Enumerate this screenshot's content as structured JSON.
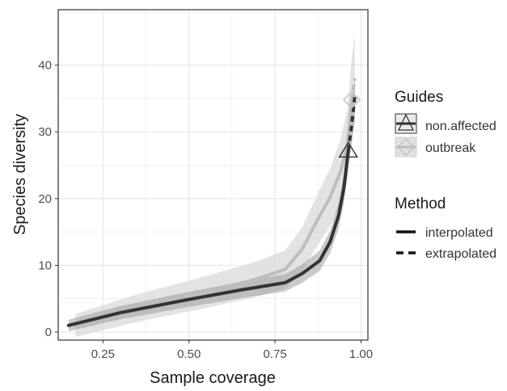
{
  "colors": {
    "non_affected": "#333333",
    "outbreak": "#bdbdbd",
    "ribbon_non_affected": "#9e9e9e",
    "ribbon_outbreak": "#d9d9d9",
    "grid": "#ebebeb",
    "panel_border": "#333333",
    "text": "#1a1a1a",
    "tick_text": "#4d4d4d"
  },
  "chart_data": {
    "type": "line",
    "xlabel": "Sample coverage",
    "ylabel": "Species diversity",
    "xlim": [
      0.12,
      1.02
    ],
    "ylim": [
      -1.2,
      48.3
    ],
    "x_ticks": [
      0.25,
      0.5,
      0.75,
      1.0
    ],
    "x_tick_labels": [
      "0.25",
      "0.50",
      "0.75",
      "1.00"
    ],
    "y_ticks": [
      0,
      10,
      20,
      30,
      40
    ],
    "y_tick_labels": [
      "0",
      "10",
      "20",
      "30",
      "40"
    ],
    "grid": true,
    "legend_position": "right",
    "legend": {
      "guides_title": "Guides",
      "guides": [
        {
          "label": "non.affected",
          "shape": "triangle",
          "color": "#333333"
        },
        {
          "label": "outbreak",
          "shape": "diamond",
          "color": "#bdbdbd"
        }
      ],
      "method_title": "Method",
      "methods": [
        {
          "label": "interpolated",
          "linetype": "solid"
        },
        {
          "label": "extrapolated",
          "linetype": "dashed"
        }
      ]
    },
    "series": [
      {
        "name": "non.affected",
        "interpolated": [
          [
            0.15,
            1.0
          ],
          [
            0.3,
            2.9
          ],
          [
            0.5,
            4.9
          ],
          [
            0.65,
            6.3
          ],
          [
            0.78,
            7.4
          ],
          [
            0.83,
            8.8
          ],
          [
            0.88,
            10.7
          ],
          [
            0.91,
            13.5
          ],
          [
            0.935,
            17.5
          ],
          [
            0.95,
            21.5
          ],
          [
            0.963,
            27.2
          ]
        ],
        "extrapolated": [
          [
            0.963,
            27.2
          ],
          [
            0.971,
            30.3
          ],
          [
            0.977,
            33.0
          ],
          [
            0.982,
            35.2
          ]
        ],
        "observed": [
          0.963,
          27.2
        ],
        "ribbon_halfwidth": 0.8
      },
      {
        "name": "outbreak",
        "interpolated": [
          [
            0.17,
            1.0
          ],
          [
            0.35,
            3.6
          ],
          [
            0.55,
            6.0
          ],
          [
            0.7,
            8.0
          ],
          [
            0.78,
            9.4
          ],
          [
            0.83,
            12.5
          ],
          [
            0.87,
            16.5
          ],
          [
            0.91,
            20.2
          ],
          [
            0.94,
            24.0
          ],
          [
            0.96,
            28.0
          ],
          [
            0.973,
            34.8
          ]
        ],
        "extrapolated": [
          [
            0.973,
            34.8
          ],
          [
            0.978,
            36.5
          ],
          [
            0.982,
            38.0
          ]
        ],
        "observed": [
          0.973,
          34.8
        ],
        "ribbon_halfwidth": 1.6
      }
    ]
  }
}
